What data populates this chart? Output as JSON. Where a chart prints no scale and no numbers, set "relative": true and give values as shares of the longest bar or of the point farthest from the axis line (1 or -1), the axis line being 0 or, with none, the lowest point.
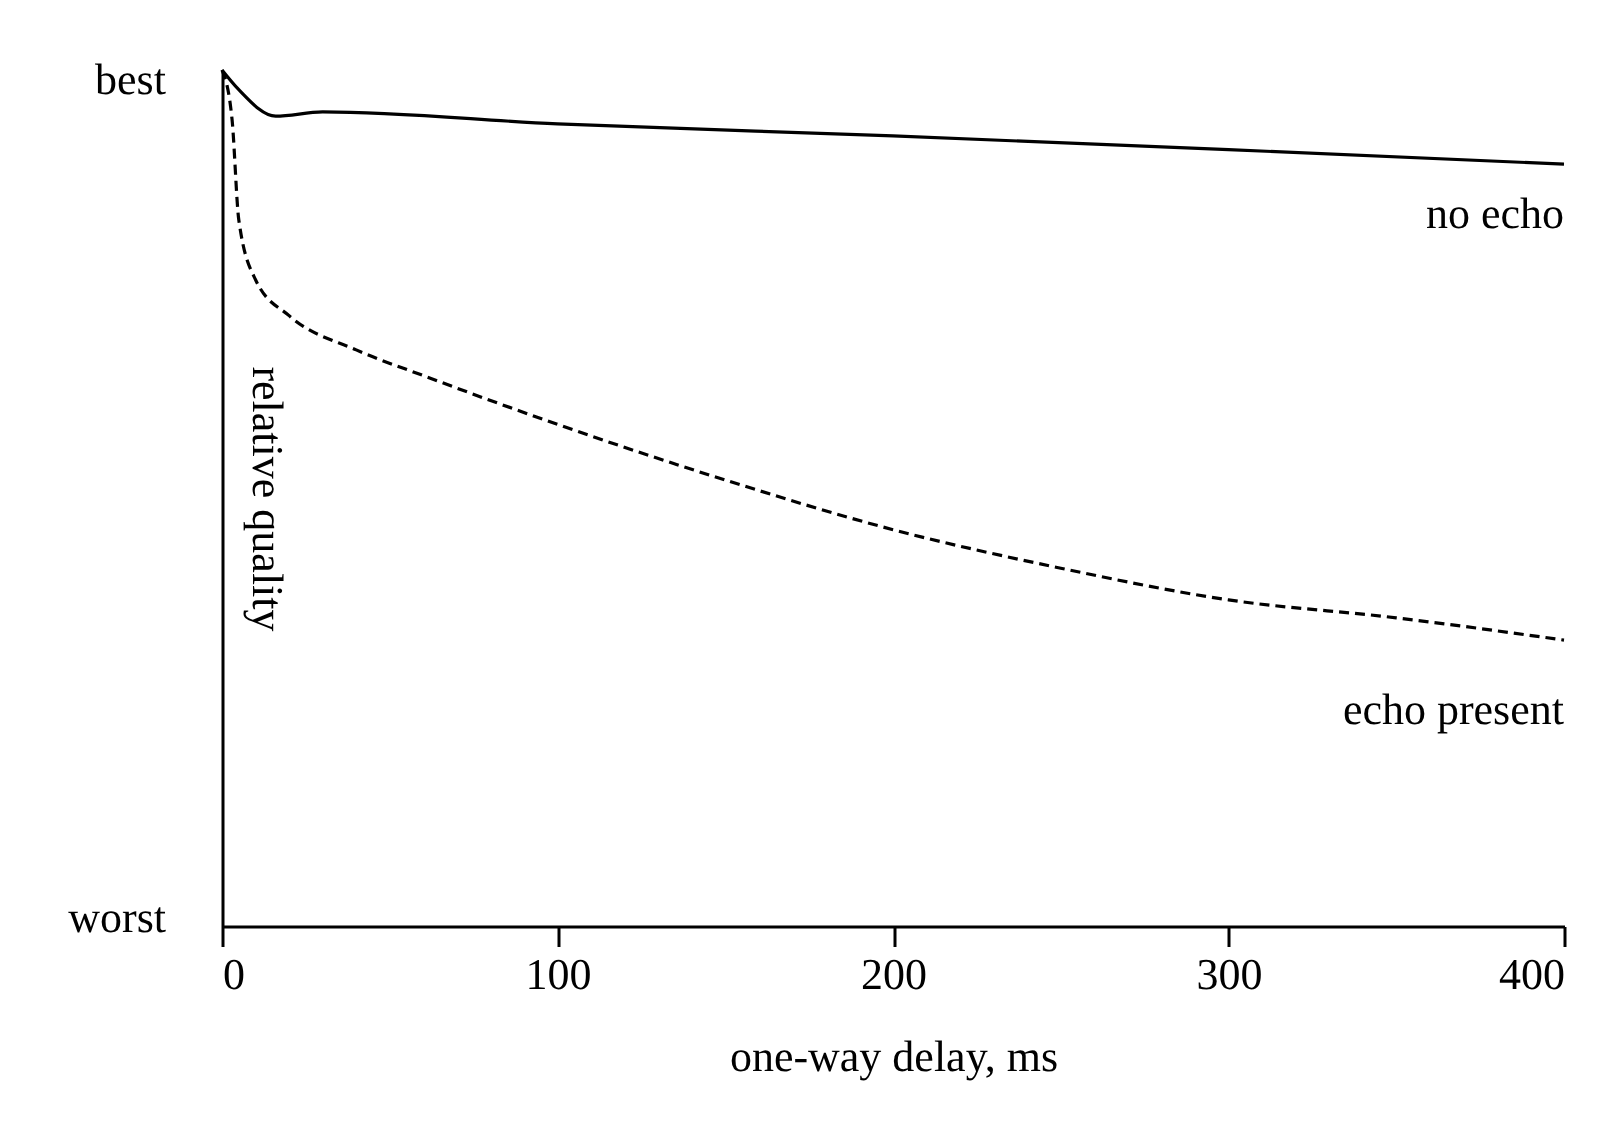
{
  "chart_data": {
    "type": "line",
    "xlabel": "one-way delay, ms",
    "ylabel": "relative quality",
    "xlim": [
      0,
      400
    ],
    "xticks": [
      0,
      100,
      200,
      300,
      400
    ],
    "relative": true,
    "grid": false,
    "marker": "none",
    "series": [
      {
        "color": "#000000",
        "line_style": "solid",
        "x": [
          0,
          5,
          16,
          30,
          100,
          200,
          300,
          400
        ],
        "values": [
          1.0,
          0.977,
          0.946,
          0.951,
          0.937,
          0.923,
          0.907,
          0.89
        ]
      },
      {
        "color": "#000000",
        "line_style": "dashed",
        "x": [
          0,
          3,
          5,
          10,
          20,
          40,
          60,
          100,
          150,
          200,
          250,
          300,
          350,
          400
        ],
        "values": [
          1.0,
          0.942,
          0.825,
          0.755,
          0.713,
          0.673,
          0.643,
          0.586,
          0.521,
          0.463,
          0.418,
          0.381,
          0.36,
          0.334
        ]
      }
    ],
    "annotations": [
      "best",
      "worst",
      "no echo",
      "echo present"
    ]
  }
}
